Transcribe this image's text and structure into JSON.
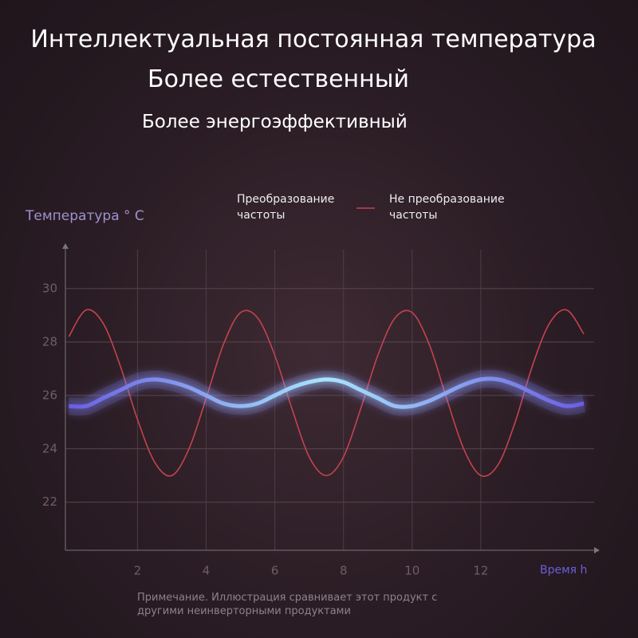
{
  "chart_data": {
    "type": "line",
    "title": "Интеллектуальная постоянная температура",
    "subtitle": "Более естественный",
    "subtitle2": "Более энергоэффективный",
    "y_label": "Температура ° C",
    "x_label": "Время h",
    "note": "Примечание. Иллюстрация сравнивает этот продукт с другими неинверторными продуктами",
    "x": [
      0,
      0.5,
      1,
      1.5,
      2,
      2.5,
      3,
      3.5,
      4,
      4.5,
      5,
      5.5,
      6,
      6.5,
      7,
      7.5,
      8,
      8.5,
      9,
      9.5,
      10,
      10.5,
      11,
      11.5,
      12,
      12.5,
      13,
      13.5,
      14,
      14.5,
      15
    ],
    "series": [
      {
        "name": "Преобразование частоты",
        "color": "#8a8cf5",
        "values": [
          25.6,
          25.6,
          25.9,
          26.2,
          26.5,
          26.6,
          26.5,
          26.3,
          26.0,
          25.7,
          25.6,
          25.7,
          26.0,
          26.3,
          26.5,
          26.6,
          26.5,
          26.2,
          25.9,
          25.6,
          25.6,
          25.8,
          26.1,
          26.4,
          26.6,
          26.6,
          26.4,
          26.1,
          25.8,
          25.6,
          25.7
        ]
      },
      {
        "name": "Не преобразование частоты",
        "color": "#c2434f",
        "values": [
          28.2,
          29.2,
          28.7,
          27.1,
          25.1,
          23.5,
          23.0,
          24.0,
          25.9,
          27.9,
          29.1,
          28.9,
          27.5,
          25.5,
          23.7,
          23.0,
          23.7,
          25.5,
          27.5,
          28.9,
          29.1,
          27.9,
          25.9,
          24.0,
          23.0,
          23.4,
          25.0,
          27.1,
          28.7,
          29.2,
          28.3
        ]
      }
    ],
    "xlim": [
      -0.1,
      15.3
    ],
    "ylim": [
      20.2,
      31.7
    ],
    "xticks": [
      2,
      4,
      6,
      8,
      10,
      12
    ],
    "yticks": [
      22,
      24,
      26,
      28,
      30
    ],
    "grid": true
  }
}
